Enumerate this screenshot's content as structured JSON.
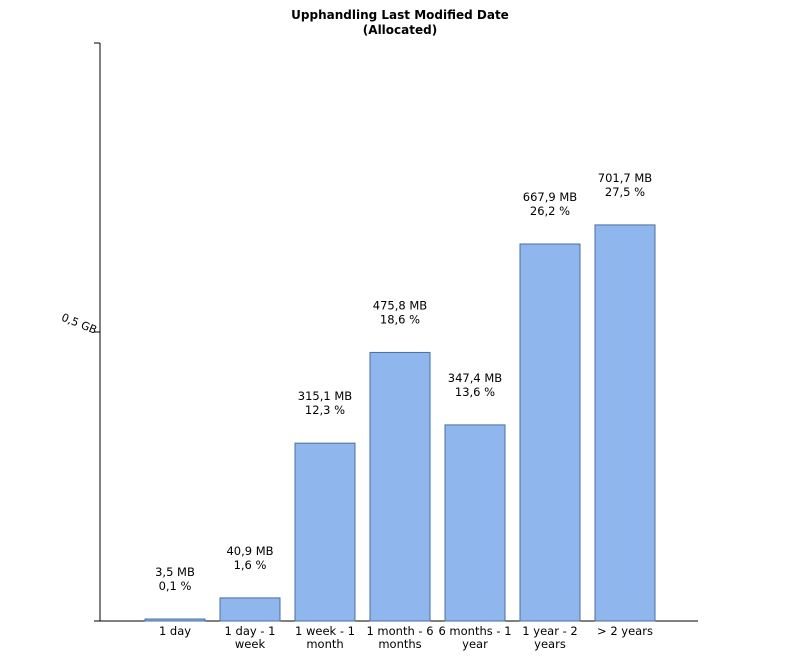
{
  "chart_data": {
    "type": "bar",
    "title_line1": "Upphandling Last Modified Date",
    "title_line2": "(Allocated)",
    "xlabel": "",
    "ylabel": "",
    "y_unit": "MB",
    "ylim": [
      0,
      1024
    ],
    "y_ticks": [
      {
        "value": 512,
        "label": "0,5 GB"
      }
    ],
    "categories": [
      [
        "1 day"
      ],
      [
        "1 day - 1",
        "week"
      ],
      [
        "1 week - 1",
        "month"
      ],
      [
        "1 month - 6",
        "months"
      ],
      [
        "6 months - 1",
        "year"
      ],
      [
        "1 year - 2",
        "years"
      ],
      [
        "> 2 years"
      ]
    ],
    "values": [
      3.5,
      40.9,
      315.1,
      475.8,
      347.4,
      667.9,
      701.7
    ],
    "value_labels": [
      "3,5 MB",
      "40,9 MB",
      "315,1 MB",
      "475,8 MB",
      "347,4 MB",
      "667,9 MB",
      "701,7 MB"
    ],
    "percent_labels": [
      "0,1 %",
      "1,6 %",
      "12,3 %",
      "18,6 %",
      "13,6 %",
      "26,2 %",
      "27,5 %"
    ],
    "bar_color": "#8fb7ee",
    "bar_stroke": "#4a6f9c",
    "axis_color": "#000000",
    "grid": false,
    "legend": "none"
  }
}
